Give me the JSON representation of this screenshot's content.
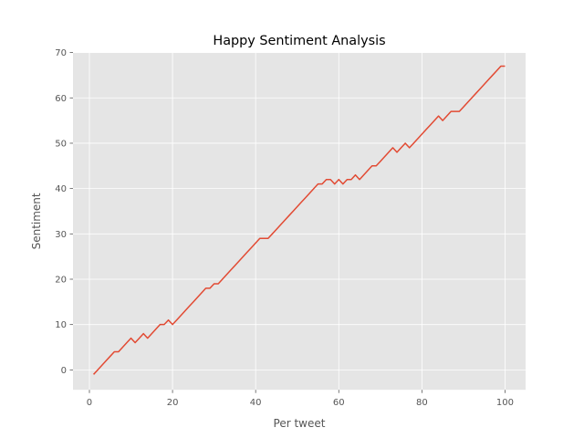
{
  "chart_data": {
    "type": "line",
    "title": "Happy Sentiment Analysis",
    "xlabel": "Per tweet",
    "ylabel": "Sentiment",
    "xlim": [
      -3.95,
      104.95
    ],
    "ylim": [
      -4.4,
      70
    ],
    "xticks": [
      0,
      20,
      40,
      60,
      80,
      100
    ],
    "yticks": [
      0,
      10,
      20,
      30,
      40,
      50,
      60,
      70
    ],
    "grid": true,
    "legend": "none",
    "colors": {
      "series": "#E24A33",
      "plot_background": "#E5E5E5",
      "grid": "#FFFFFF"
    },
    "series": [
      {
        "x": [
          1,
          2,
          3,
          4,
          5,
          6,
          7,
          8,
          9,
          10,
          11,
          12,
          13,
          14,
          15,
          16,
          17,
          18,
          19,
          20,
          21,
          22,
          23,
          24,
          25,
          26,
          27,
          28,
          29,
          30,
          31,
          32,
          33,
          34,
          35,
          36,
          37,
          38,
          39,
          40,
          41,
          42,
          43,
          44,
          45,
          46,
          47,
          48,
          49,
          50,
          51,
          52,
          53,
          54,
          55,
          56,
          57,
          58,
          59,
          60,
          61,
          62,
          63,
          64,
          65,
          66,
          67,
          68,
          69,
          70,
          71,
          72,
          73,
          74,
          75,
          76,
          77,
          78,
          79,
          80,
          81,
          82,
          83,
          84,
          85,
          86,
          87,
          88,
          89,
          90,
          91,
          92,
          93,
          94,
          95,
          96,
          97,
          98,
          99,
          100
        ],
        "y": [
          -1,
          0,
          1,
          2,
          3,
          4,
          4,
          5,
          6,
          7,
          6,
          7,
          8,
          7,
          8,
          9,
          10,
          10,
          11,
          10,
          11,
          12,
          13,
          14,
          15,
          16,
          17,
          18,
          18,
          19,
          19,
          20,
          21,
          22,
          23,
          24,
          25,
          26,
          27,
          28,
          29,
          29,
          29,
          30,
          31,
          32,
          33,
          34,
          35,
          36,
          37,
          38,
          39,
          40,
          41,
          41,
          42,
          42,
          41,
          42,
          41,
          42,
          42,
          43,
          42,
          43,
          44,
          45,
          45,
          46,
          47,
          48,
          49,
          48,
          49,
          50,
          49,
          50,
          51,
          52,
          53,
          54,
          55,
          56,
          55,
          56,
          57,
          57,
          57,
          58,
          59,
          60,
          61,
          62,
          63,
          64,
          65,
          66,
          67,
          67
        ]
      }
    ]
  }
}
